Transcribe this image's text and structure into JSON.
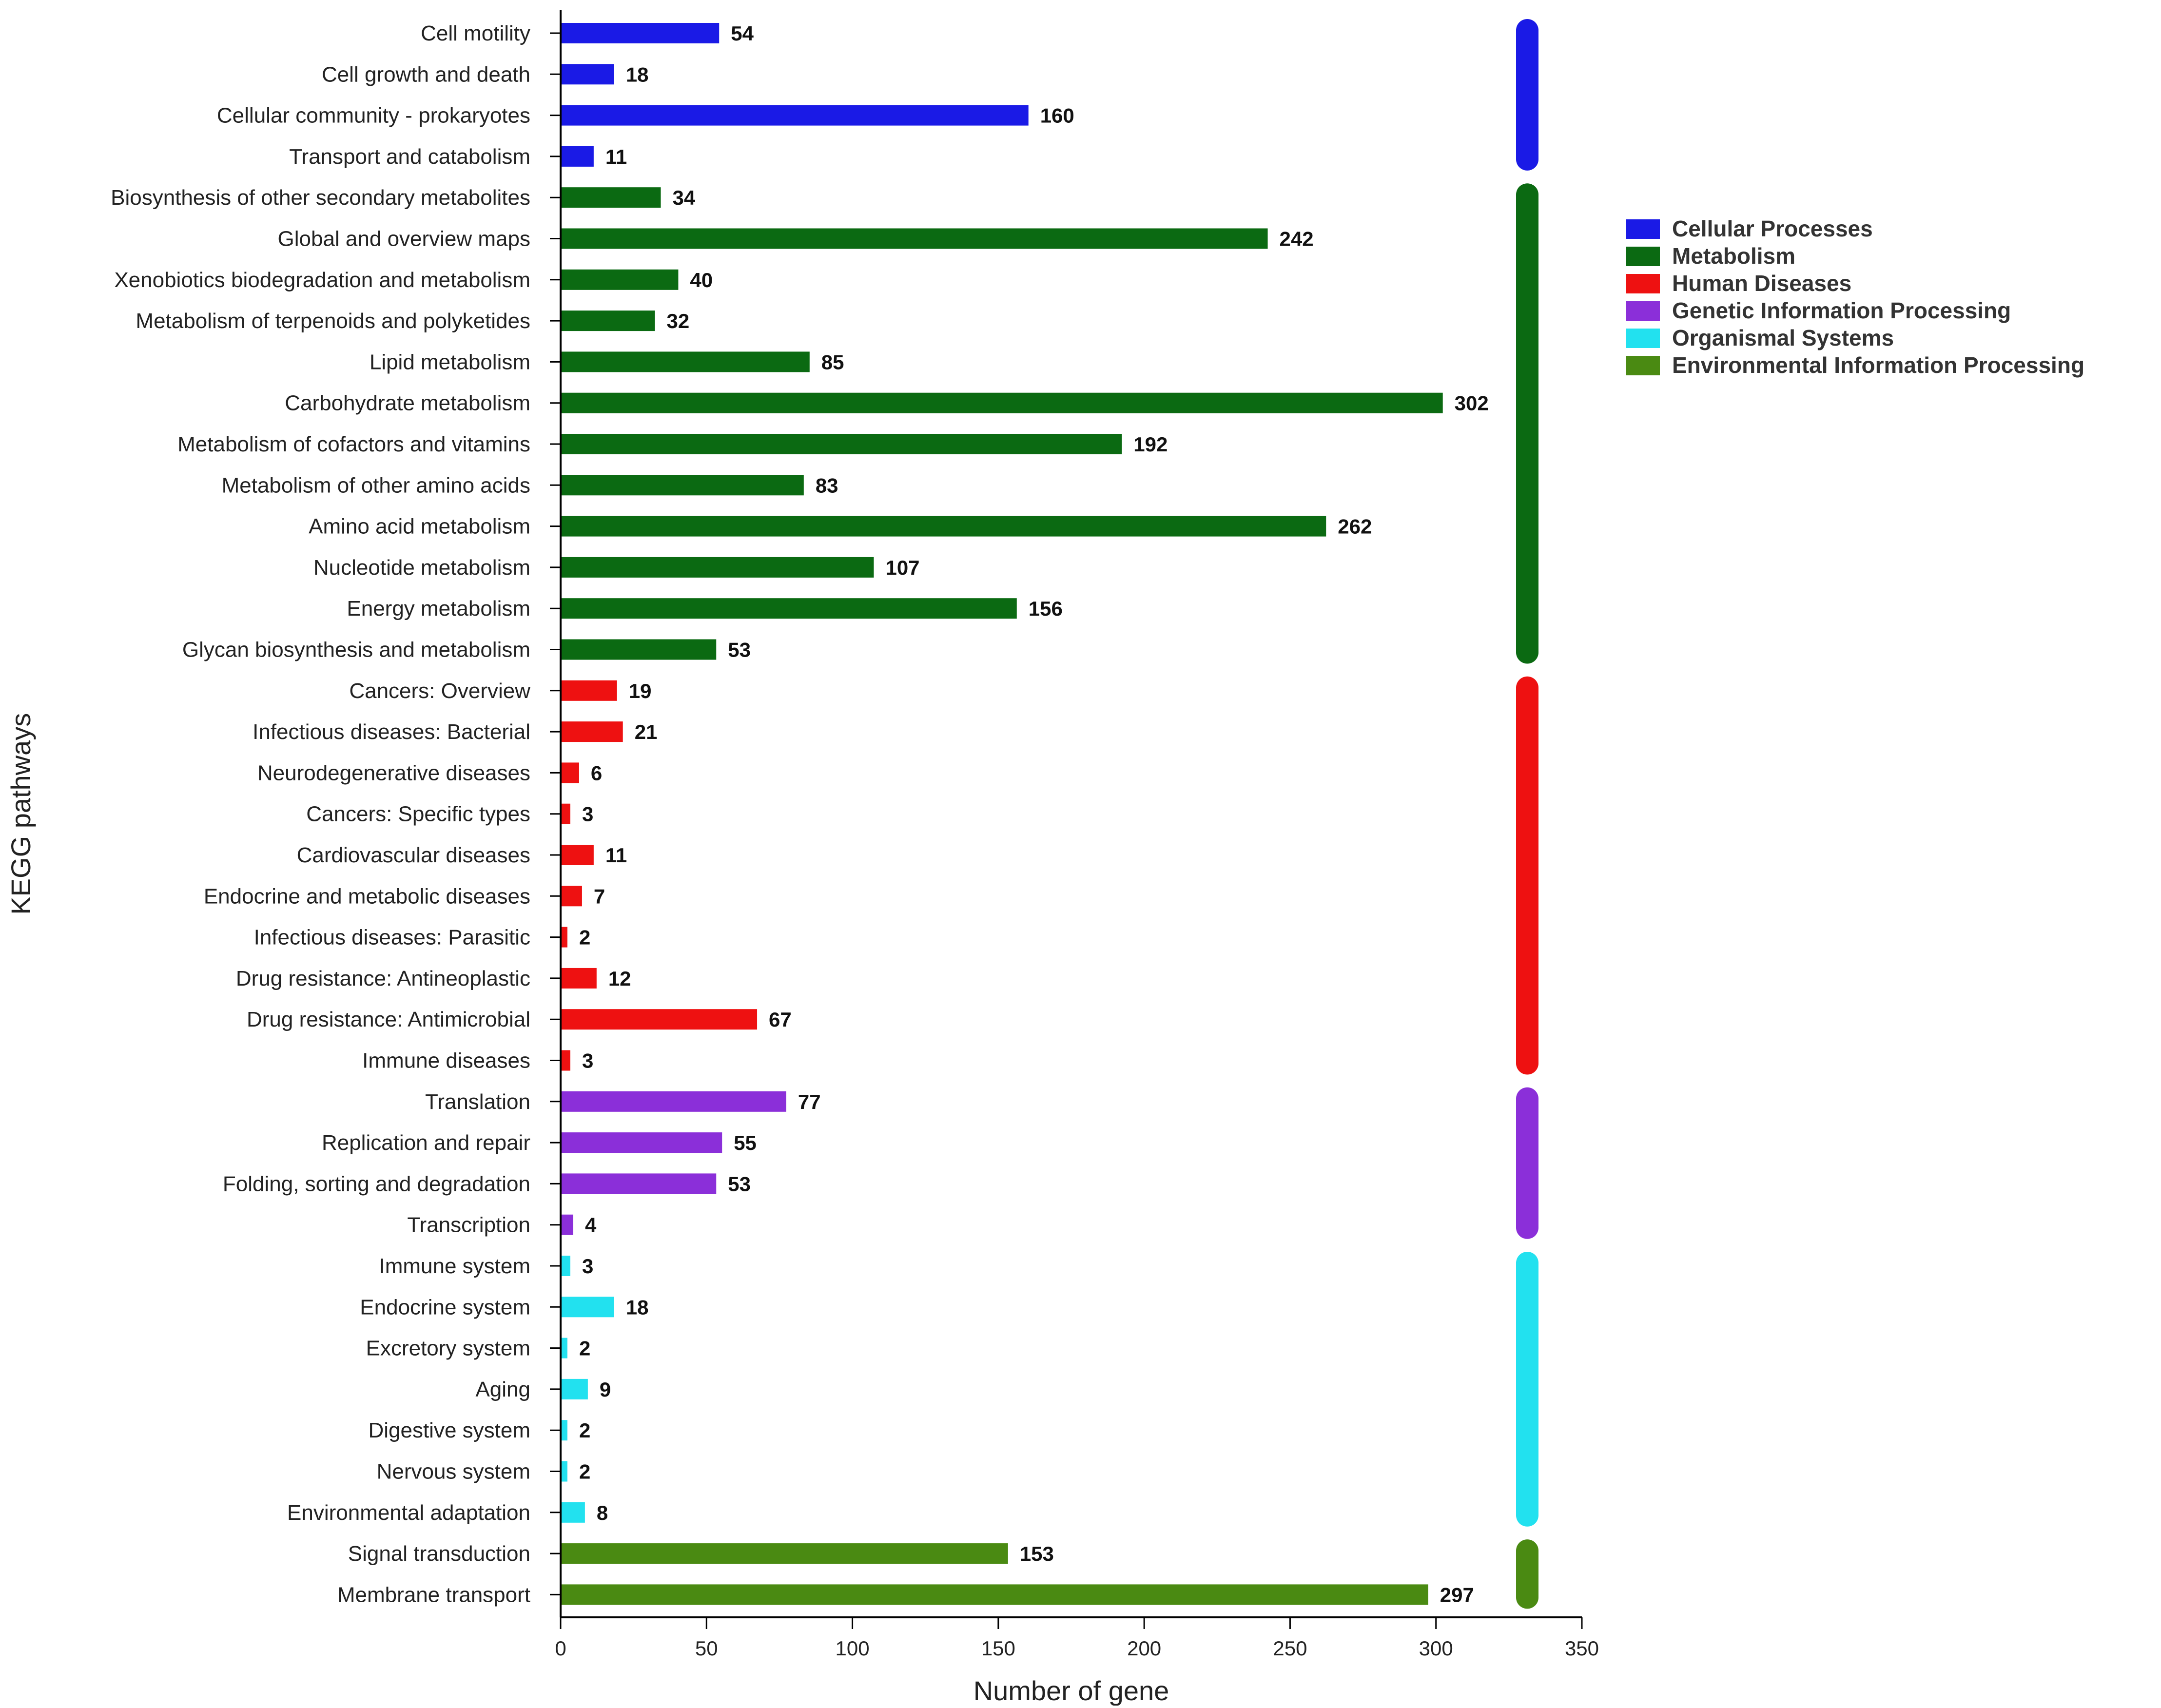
{
  "chart_data": {
    "type": "bar",
    "orientation": "horizontal",
    "title": "",
    "xlabel": "Number of gene",
    "ylabel": "KEGG pathways",
    "xlim": [
      0,
      350
    ],
    "xticks": [
      0,
      50,
      100,
      150,
      200,
      250,
      300,
      350
    ],
    "grid": false,
    "legend_position": "right",
    "groups": [
      {
        "name": "Cellular Processes",
        "color": "#1a1ae6"
      },
      {
        "name": "Metabolism",
        "color": "#0b6a12"
      },
      {
        "name": "Human Diseases",
        "color": "#ee1111"
      },
      {
        "name": "Genetic Information Processing",
        "color": "#8b2fd9"
      },
      {
        "name": "Organismal Systems",
        "color": "#22e1ef"
      },
      {
        "name": "Environmental Information Processing",
        "color": "#4a8a12"
      }
    ],
    "bars": [
      {
        "category": "Cell motility",
        "value": 54,
        "group": 0
      },
      {
        "category": "Cell growth and death",
        "value": 18,
        "group": 0
      },
      {
        "category": "Cellular community - prokaryotes",
        "value": 160,
        "group": 0
      },
      {
        "category": "Transport and catabolism",
        "value": 11,
        "group": 0
      },
      {
        "category": "Biosynthesis of other secondary metabolites",
        "value": 34,
        "group": 1
      },
      {
        "category": "Global and overview maps",
        "value": 242,
        "group": 1
      },
      {
        "category": "Xenobiotics biodegradation and metabolism",
        "value": 40,
        "group": 1
      },
      {
        "category": "Metabolism of terpenoids and polyketides",
        "value": 32,
        "group": 1
      },
      {
        "category": "Lipid metabolism",
        "value": 85,
        "group": 1
      },
      {
        "category": "Carbohydrate metabolism",
        "value": 302,
        "group": 1
      },
      {
        "category": "Metabolism of cofactors and vitamins",
        "value": 192,
        "group": 1
      },
      {
        "category": "Metabolism of other amino acids",
        "value": 83,
        "group": 1
      },
      {
        "category": "Amino acid metabolism",
        "value": 262,
        "group": 1
      },
      {
        "category": "Nucleotide metabolism",
        "value": 107,
        "group": 1
      },
      {
        "category": "Energy metabolism",
        "value": 156,
        "group": 1
      },
      {
        "category": "Glycan biosynthesis and metabolism",
        "value": 53,
        "group": 1
      },
      {
        "category": "Cancers: Overview",
        "value": 19,
        "group": 2
      },
      {
        "category": "Infectious diseases: Bacterial",
        "value": 21,
        "group": 2
      },
      {
        "category": "Neurodegenerative diseases",
        "value": 6,
        "group": 2
      },
      {
        "category": "Cancers: Specific types",
        "value": 3,
        "group": 2
      },
      {
        "category": "Cardiovascular diseases",
        "value": 11,
        "group": 2
      },
      {
        "category": "Endocrine and metabolic diseases",
        "value": 7,
        "group": 2
      },
      {
        "category": "Infectious diseases: Parasitic",
        "value": 2,
        "group": 2
      },
      {
        "category": "Drug resistance: Antineoplastic",
        "value": 12,
        "group": 2
      },
      {
        "category": "Drug resistance: Antimicrobial",
        "value": 67,
        "group": 2
      },
      {
        "category": "Immune diseases",
        "value": 3,
        "group": 2
      },
      {
        "category": "Translation",
        "value": 77,
        "group": 3
      },
      {
        "category": "Replication and repair",
        "value": 55,
        "group": 3
      },
      {
        "category": "Folding, sorting and degradation",
        "value": 53,
        "group": 3
      },
      {
        "category": "Transcription",
        "value": 4,
        "group": 3
      },
      {
        "category": "Immune system",
        "value": 3,
        "group": 4
      },
      {
        "category": "Endocrine system",
        "value": 18,
        "group": 4
      },
      {
        "category": "Excretory system",
        "value": 2,
        "group": 4
      },
      {
        "category": "Aging",
        "value": 9,
        "group": 4
      },
      {
        "category": "Digestive system",
        "value": 2,
        "group": 4
      },
      {
        "category": "Nervous system",
        "value": 2,
        "group": 4
      },
      {
        "category": "Environmental adaptation",
        "value": 8,
        "group": 4
      },
      {
        "category": "Signal transduction",
        "value": 153,
        "group": 5
      },
      {
        "category": "Membrane transport",
        "value": 297,
        "group": 5
      }
    ]
  }
}
